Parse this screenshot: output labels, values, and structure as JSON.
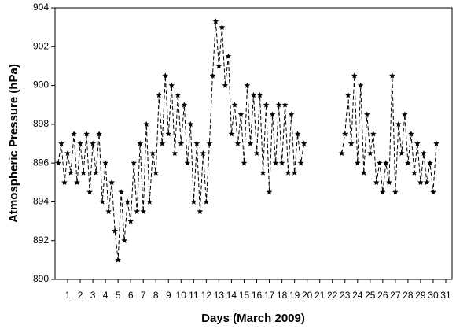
{
  "chart_data": {
    "type": "line",
    "x_label": "Days (March 2009)",
    "y_label": "Atmospheric Pressure (hPa)",
    "xlim": [
      0,
      31.5
    ],
    "xticks": [
      1,
      2,
      3,
      4,
      5,
      6,
      7,
      8,
      9,
      10,
      11,
      12,
      13,
      14,
      15,
      16,
      17,
      18,
      19,
      20,
      21,
      22,
      23,
      24,
      25,
      26,
      27,
      28,
      29,
      30,
      31
    ],
    "ylim": [
      890,
      904
    ],
    "yticks": [
      890,
      892,
      894,
      896,
      898,
      900,
      902,
      904
    ],
    "grid": false,
    "series": [
      {
        "color": "#000000",
        "x": [
          0.25,
          0.5,
          0.75,
          1,
          1.25,
          1.5,
          1.75,
          2,
          2.25,
          2.5,
          2.75,
          3,
          3.25,
          3.5,
          3.75,
          4,
          4.25,
          4.5,
          4.75,
          5,
          5.25,
          5.5,
          5.75,
          6,
          6.25,
          6.5,
          6.75,
          7,
          7.25,
          7.5,
          7.75,
          8,
          8.25,
          8.5,
          8.75,
          9,
          9.25,
          9.5,
          9.75,
          10,
          10.25,
          10.5,
          10.75,
          11,
          11.25,
          11.5,
          11.75,
          12,
          12.25,
          12.5,
          12.75,
          13,
          13.25,
          13.5,
          13.75,
          14,
          14.25,
          14.5,
          14.75,
          15,
          15.25,
          15.5,
          15.75,
          16,
          16.25,
          16.5,
          16.75,
          17,
          17.25,
          17.5,
          17.75,
          18,
          18.25,
          18.5,
          18.75,
          19,
          19.25,
          19.5,
          19.75,
          21,
          22.75,
          23,
          23.25,
          23.5,
          23.75,
          24,
          24.25,
          24.5,
          24.75,
          25,
          25.25,
          25.5,
          25.75,
          26,
          26.25,
          26.5,
          26.75,
          27,
          27.25,
          27.5,
          27.75,
          28,
          28.25,
          28.5,
          28.75,
          29,
          29.25,
          29.5,
          29.75,
          30,
          30.25
        ],
        "values": [
          896,
          897,
          895,
          896.5,
          895.5,
          897.5,
          895,
          897,
          895.5,
          897.5,
          894.5,
          897,
          895.5,
          897.5,
          894,
          896,
          893.5,
          895,
          892.5,
          891,
          894.5,
          892,
          894,
          893,
          896,
          893.5,
          897,
          893.5,
          898,
          894,
          896.5,
          895.5,
          899.5,
          897,
          900.5,
          897.5,
          900,
          896.5,
          899.5,
          897,
          899,
          896,
          898,
          894,
          897,
          893.5,
          896.5,
          894,
          897,
          900.5,
          903.3,
          901,
          903,
          900,
          901.5,
          897.5,
          899,
          897,
          898.5,
          896,
          900,
          897,
          899.5,
          896.5,
          899.5,
          895.5,
          899,
          894.5,
          898.5,
          896,
          899,
          896,
          899,
          895.5,
          898.5,
          895.5,
          897.5,
          896,
          897,
          null,
          896.5,
          897.5,
          899.5,
          897,
          900.5,
          896,
          900,
          895.5,
          898.5,
          896.5,
          897.5,
          895,
          896,
          894.5,
          896,
          895,
          900.5,
          894.5,
          898,
          896.5,
          898.5,
          896,
          897.5,
          895.5,
          897,
          895,
          896.5,
          895,
          896,
          894.5,
          897
        ]
      }
    ]
  }
}
